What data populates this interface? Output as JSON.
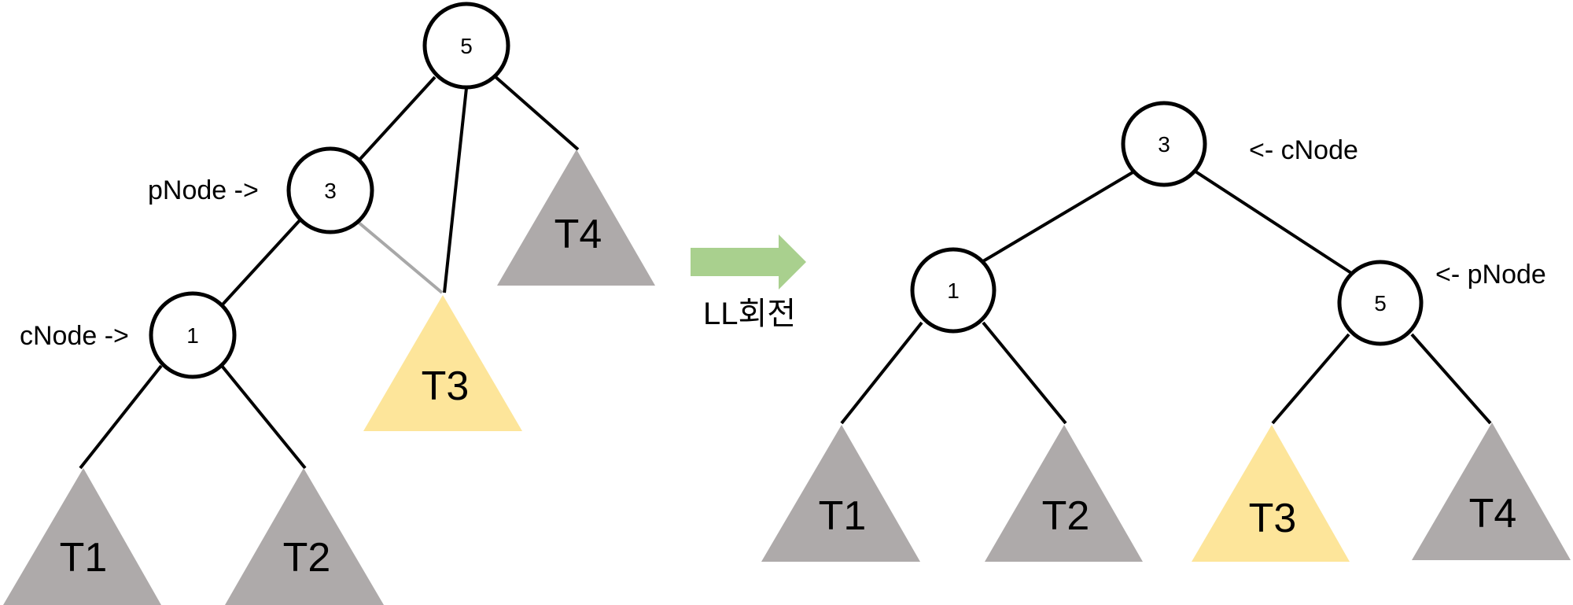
{
  "colors": {
    "subtree_gray": "#aeaaaa",
    "subtree_yellow": "#fde59a",
    "arrow_green": "#a9d08e",
    "gray_edge": "#a8a8a8"
  },
  "before": {
    "nodes": {
      "root": "5",
      "mid": "3",
      "low": "1"
    },
    "pointer_labels": {
      "pNode": "pNode ->",
      "cNode": "cNode ->"
    },
    "subtrees": {
      "t1": "T1",
      "t2": "T2",
      "t3": "T3",
      "t4": "T4"
    }
  },
  "transition": {
    "label": "LL회전"
  },
  "after": {
    "nodes": {
      "root": "3",
      "left": "1",
      "right": "5"
    },
    "pointer_labels": {
      "cNode": "<- cNode",
      "pNode": "<- pNode"
    },
    "subtrees": {
      "t1": "T1",
      "t2": "T2",
      "t3": "T3",
      "t4": "T4"
    }
  }
}
